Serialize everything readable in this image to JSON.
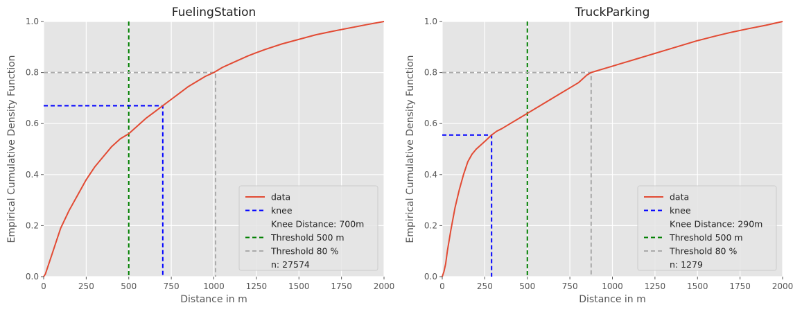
{
  "figure": {
    "ylabel": "Empirical Cumulative Density Function"
  },
  "chart_data": [
    {
      "type": "line",
      "title": "FuelingStation",
      "xlabel": "Distance in m",
      "ylabel": "Empirical Cumulative Density Function",
      "xlim": [
        0,
        2000
      ],
      "ylim": [
        0,
        1.0
      ],
      "xticks": [
        "0",
        "250",
        "500",
        "750",
        "1000",
        "1250",
        "1500",
        "1750",
        "2000"
      ],
      "yticks": [
        "0.0",
        "0.2",
        "0.4",
        "0.6",
        "0.8",
        "1.0"
      ],
      "grid": true,
      "legend_position": "bottom-right",
      "series": [
        {
          "name": "data",
          "color": "#e24a33",
          "x": [
            0,
            10,
            25,
            50,
            75,
            100,
            150,
            200,
            250,
            300,
            350,
            400,
            450,
            500,
            550,
            600,
            650,
            700,
            750,
            800,
            850,
            900,
            950,
            1000,
            1050,
            1100,
            1150,
            1200,
            1250,
            1300,
            1400,
            1500,
            1600,
            1700,
            1800,
            1900,
            2000
          ],
          "y": [
            0,
            0.01,
            0.04,
            0.09,
            0.14,
            0.19,
            0.26,
            0.32,
            0.38,
            0.43,
            0.47,
            0.51,
            0.54,
            0.56,
            0.59,
            0.62,
            0.645,
            0.67,
            0.695,
            0.72,
            0.745,
            0.765,
            0.785,
            0.8,
            0.82,
            0.835,
            0.85,
            0.865,
            0.878,
            0.89,
            0.912,
            0.93,
            0.948,
            0.962,
            0.975,
            0.988,
            1.0
          ]
        }
      ],
      "knee": {
        "label": "knee",
        "x": 700,
        "y": 0.67,
        "color": "#0000ff",
        "annotation": "Knee Distance: 700m"
      },
      "threshold_distance": {
        "label": "Threshold 500 m",
        "x": 500,
        "color": "#008000"
      },
      "threshold_percent": {
        "label": "Threshold 80 %",
        "x": 1010,
        "y": 0.8,
        "color": "#aaaaaa"
      },
      "n_label": "n: 27574"
    },
    {
      "type": "line",
      "title": "TruckParking",
      "xlabel": "Distance in m",
      "ylabel": "Empirical Cumulative Density Function",
      "xlim": [
        0,
        2000
      ],
      "ylim": [
        0,
        1.0
      ],
      "xticks": [
        "0",
        "250",
        "500",
        "750",
        "1000",
        "1250",
        "1500",
        "1750",
        "2000"
      ],
      "yticks": [
        "0.0",
        "0.2",
        "0.4",
        "0.6",
        "0.8",
        "1.0"
      ],
      "grid": true,
      "legend_position": "bottom-right",
      "series": [
        {
          "name": "data",
          "color": "#e24a33",
          "x": [
            0,
            10,
            20,
            30,
            50,
            75,
            100,
            125,
            150,
            175,
            200,
            250,
            290,
            320,
            350,
            400,
            450,
            500,
            550,
            600,
            650,
            700,
            750,
            800,
            850,
            875,
            900,
            950,
            1000,
            1050,
            1100,
            1150,
            1200,
            1250,
            1300,
            1400,
            1500,
            1600,
            1700,
            1800,
            1900,
            2000
          ],
          "y": [
            0,
            0.02,
            0.05,
            0.1,
            0.18,
            0.27,
            0.34,
            0.4,
            0.45,
            0.48,
            0.5,
            0.53,
            0.555,
            0.57,
            0.58,
            0.6,
            0.62,
            0.64,
            0.66,
            0.68,
            0.7,
            0.72,
            0.74,
            0.76,
            0.79,
            0.8,
            0.805,
            0.815,
            0.825,
            0.835,
            0.845,
            0.855,
            0.865,
            0.875,
            0.885,
            0.905,
            0.925,
            0.942,
            0.958,
            0.972,
            0.985,
            1.0
          ]
        }
      ],
      "knee": {
        "label": "knee",
        "x": 290,
        "y": 0.555,
        "color": "#0000ff",
        "annotation": "Knee Distance: 290m"
      },
      "threshold_distance": {
        "label": "Threshold 500 m",
        "x": 500,
        "color": "#008000"
      },
      "threshold_percent": {
        "label": "Threshold 80 %",
        "x": 875,
        "y": 0.8,
        "color": "#aaaaaa"
      },
      "n_label": "n: 1279"
    }
  ]
}
